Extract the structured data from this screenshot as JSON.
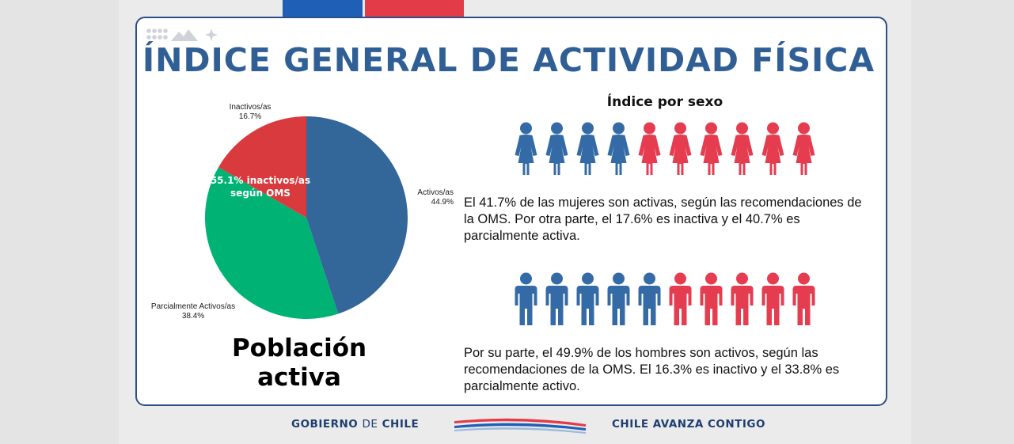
{
  "title": "ÍNDICE GENERAL DE ACTIVIDAD FÍSICA",
  "colors": {
    "activos": "#336699",
    "parciales": "#00b274",
    "inactivos": "#d93a3d",
    "title": "#2f5f95",
    "female_blue": "#346ba6",
    "female_red": "#e53c50"
  },
  "chart_data": {
    "type": "pie",
    "title": "",
    "slices": [
      {
        "name": "Activos/as",
        "value": 44.9,
        "label": "44.9%",
        "color": "#336699"
      },
      {
        "name": "Parcialmente Activos/as",
        "value": 38.4,
        "label": "38.4%",
        "color": "#00b274"
      },
      {
        "name": "Inactivos/as",
        "value": 16.7,
        "label": "16.7%",
        "color": "#d93a3d"
      }
    ],
    "annotation": {
      "line1": "55.1% inactivos/as",
      "line2": "según OMS"
    }
  },
  "poblacion": {
    "line1": "Población",
    "line2": "activa"
  },
  "sexo": {
    "heading": "Índice por sexo",
    "women": {
      "blue_count": 4,
      "red_count": 6,
      "text": "El 41.7% de las mujeres son activas, según las recomendaciones de la OMS. Por otra parte, el 17.6% es inactiva y el 40.7% es parcialmente activa."
    },
    "men": {
      "blue_count": 5,
      "red_count": 5,
      "text": "Por su parte, el 49.9% de los hombres son activos, según las recomendaciones de la OMS. El 16.3% es inactivo y el 33.8% es parcialmente activo."
    }
  },
  "footer": {
    "gobierno_bold": "GOBIERNO",
    "gobierno_light": "DE",
    "gobierno_end": "CHILE",
    "slogan": "CHILE AVANZA CONTIGO"
  }
}
